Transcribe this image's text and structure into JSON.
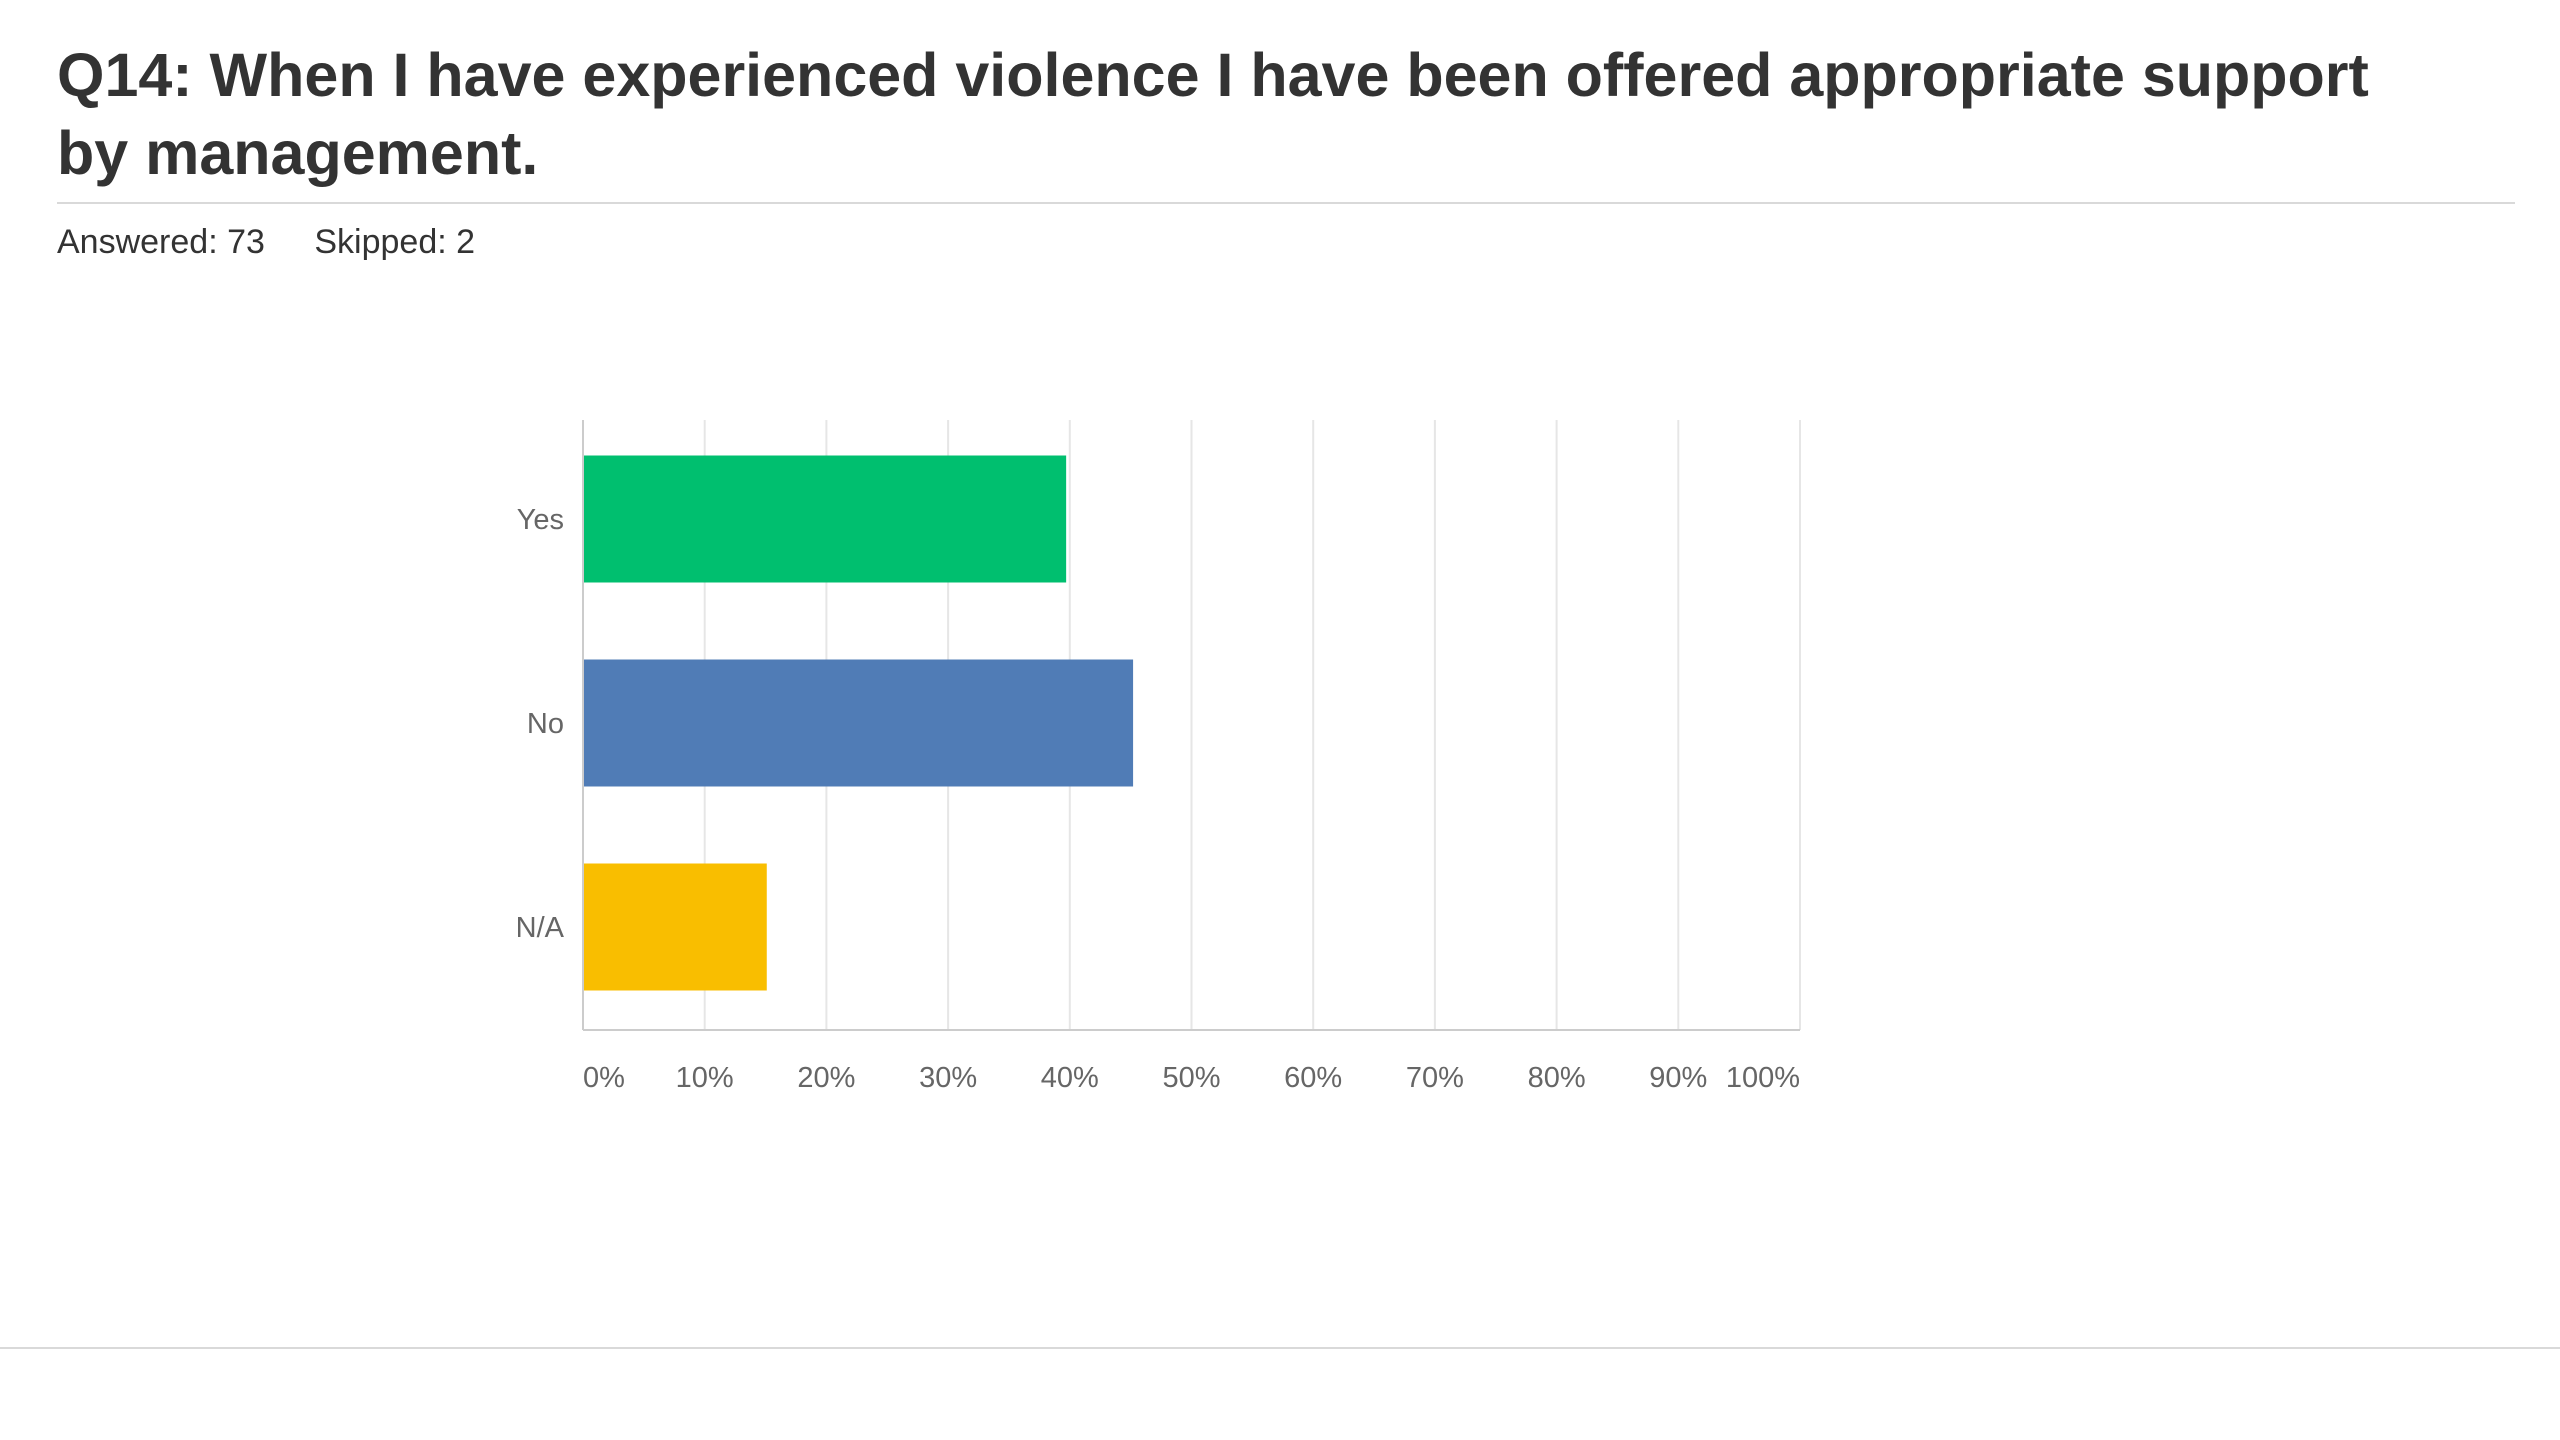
{
  "question": {
    "title": "Q14: When I have experienced violence I have been offered appropriate support by management."
  },
  "stats": {
    "answered": "Answered: 73",
    "skipped": "Skipped: 2"
  },
  "colors": {
    "yes": "#00bf6f",
    "no": "#507cb6",
    "na": "#f9be00",
    "grid": "#e6e6e6",
    "axis": "#cccccc"
  },
  "chart_data": {
    "type": "bar",
    "orientation": "horizontal",
    "categories": [
      "Yes",
      "No",
      "N/A"
    ],
    "values": [
      39.7,
      45.2,
      15.1
    ],
    "unit": "%",
    "xlim": [
      0,
      100
    ],
    "xticks": [
      "0%",
      "10%",
      "20%",
      "30%",
      "40%",
      "50%",
      "60%",
      "70%",
      "80%",
      "90%",
      "100%"
    ],
    "grid": true,
    "legend": "none",
    "title": "",
    "xlabel": "",
    "ylabel": ""
  }
}
